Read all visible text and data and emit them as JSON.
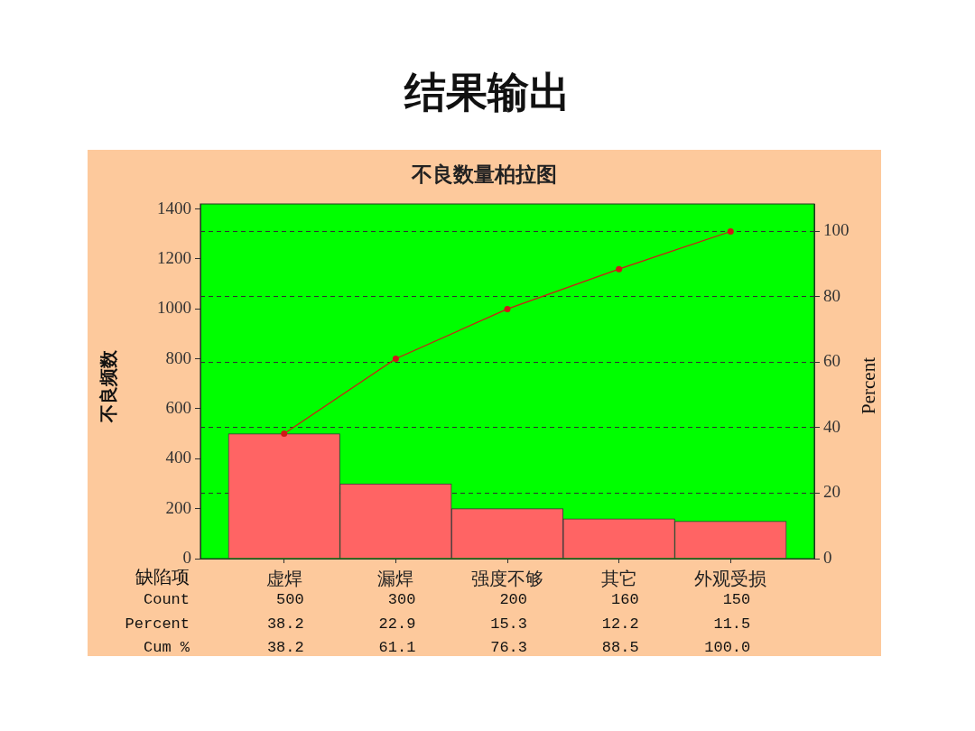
{
  "chart_data": {
    "type": "bar",
    "title": "结果输出",
    "subtitle": "不良数量柏拉图",
    "xlabel": "缺陷项",
    "ylabel": "不良频数",
    "y2label": "Percent",
    "categories": [
      "虚焊",
      "漏焊",
      "强度不够",
      "其它",
      "外观受损"
    ],
    "series": [
      {
        "color": "#ff6464",
        "values": [
          500,
          300,
          200,
          160,
          150
        ],
        "value_labels": [
          "500",
          "300",
          "200",
          "160",
          "150"
        ]
      },
      {
        "type": "line",
        "axis": "y2",
        "color": "#d01818",
        "values": [
          38.2,
          61.1,
          76.3,
          88.5,
          100.0
        ],
        "value_labels": [
          "38.2",
          "61.1",
          "76.3",
          "88.5",
          "100.0"
        ]
      }
    ],
    "annotations": [
      "Count",
      "Percent",
      "Cum %",
      "38.2",
      "22.9",
      "15.3",
      "12.2",
      "11.5"
    ],
    "ylim": [
      0,
      1420
    ],
    "yticks": [
      0,
      200,
      400,
      600,
      800,
      1000,
      1200,
      1400
    ],
    "y2lim": [
      0,
      108.4
    ],
    "y2ticks": [
      0,
      20,
      40,
      60,
      80,
      100
    ],
    "grid": "y2",
    "legend": false,
    "marker": "circle",
    "line_style": "solid"
  }
}
